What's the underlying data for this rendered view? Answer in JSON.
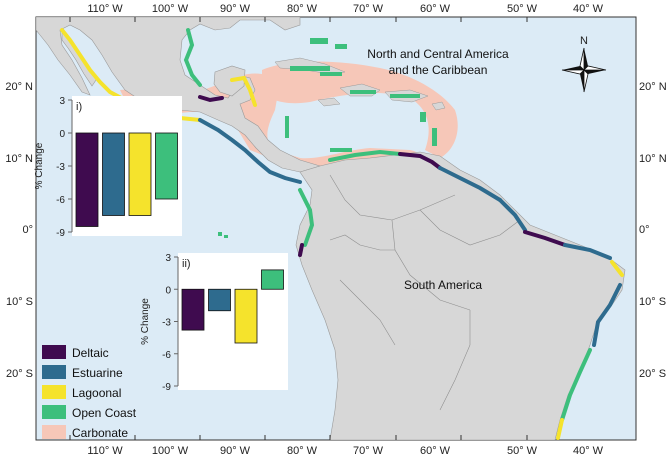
{
  "map": {
    "top_lon_labels": [
      "110° W",
      "100° W",
      "90° W",
      "80° W",
      "70° W",
      "60° W",
      "50° W",
      "40° W"
    ],
    "bottom_lon_labels": [
      "110° W",
      "100° W",
      "90° W",
      "80° W",
      "70° W",
      "60° W",
      "50° W",
      "40° W"
    ],
    "left_lat_labels": [
      "20° N",
      "10° N",
      "0°",
      "10° S",
      "20° S"
    ],
    "right_lat_labels": [
      "20° N",
      "10° N",
      "0°",
      "10° S",
      "20° S"
    ],
    "region_label_na": [
      "North and Central America",
      "and the Caribbean"
    ],
    "region_label_sa": "South America",
    "north_arrow_label": "N",
    "colors": {
      "ocean": "#dcebf6",
      "land": "#d7d7d7",
      "deltaic": "#3f0b4f",
      "estuarine": "#2e6b8e",
      "lagoonal": "#f5e32c",
      "open_coast": "#3dbf7c",
      "carbonate": "#f6c7b8"
    }
  },
  "legend": {
    "items": [
      {
        "label": "Deltaic",
        "color": "#3f0b4f"
      },
      {
        "label": "Estuarine",
        "color": "#2e6b8e"
      },
      {
        "label": "Lagoonal",
        "color": "#f5e32c"
      },
      {
        "label": "Open Coast",
        "color": "#3dbf7c"
      },
      {
        "label": "Carbonate",
        "color": "#f6c7b8"
      }
    ]
  },
  "chart_data": [
    {
      "type": "bar",
      "panel_label": "i)",
      "ylabel": "% Change",
      "ylim": [
        -9,
        3
      ],
      "yticks": [
        "3",
        "0",
        "-3",
        "-6",
        "-9"
      ],
      "categories": [
        "Deltaic",
        "Estuarine",
        "Lagoonal",
        "Open Coast"
      ],
      "values": [
        -8.5,
        -7.5,
        -7.5,
        -6.0
      ],
      "colors": [
        "#3f0b4f",
        "#2e6b8e",
        "#f5e32c",
        "#3dbf7c"
      ]
    },
    {
      "type": "bar",
      "panel_label": "ii)",
      "ylabel": "% Change",
      "ylim": [
        -9,
        3
      ],
      "yticks": [
        "3",
        "0",
        "-3",
        "-6",
        "-9"
      ],
      "categories": [
        "Deltaic",
        "Estuarine",
        "Lagoonal",
        "Open Coast"
      ],
      "values": [
        -3.8,
        -2.0,
        -5.0,
        1.8
      ],
      "colors": [
        "#3f0b4f",
        "#2e6b8e",
        "#f5e32c",
        "#3dbf7c"
      ]
    }
  ]
}
